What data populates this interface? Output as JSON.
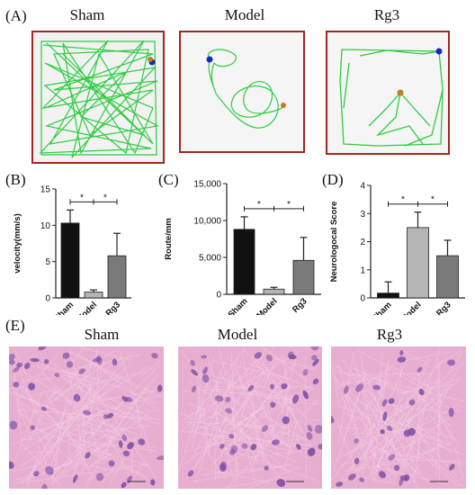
{
  "panel_letters": {
    "a": "(A)",
    "b": "(B)",
    "c": "(C)",
    "d": "(D)",
    "e": "(E)"
  },
  "track_titles": [
    "Sham",
    "Model",
    "Rg3"
  ],
  "histology_titles": [
    "Sham",
    "Model",
    "Rg3"
  ],
  "colors": {
    "frame": "#a0281e",
    "path": "#2ecc40",
    "pool_fill": "#f2f2f2",
    "start_dot": "#1428c8",
    "end_dot": "#c8781e",
    "bar_sham": "#111111",
    "bar_model": "#b4b4b4",
    "bar_rg3": "#7a7a7a",
    "tissue_bg": "#e8aed0",
    "nucleus": "#7a4fa6"
  },
  "chart_data": [
    {
      "id": "B",
      "type": "bar",
      "categories": [
        "Sham",
        "Model",
        "Rg3"
      ],
      "values": [
        10.3,
        0.8,
        5.8
      ],
      "errors": [
        1.8,
        0.3,
        3.1
      ],
      "ylabel": "velocity(mm/s)",
      "ylim": [
        0,
        15
      ],
      "yticks": [
        "0",
        "5",
        "10",
        "15"
      ],
      "ytick_values": [
        0,
        5,
        10,
        15
      ],
      "significance": [
        "*",
        "*"
      ]
    },
    {
      "id": "C",
      "type": "bar",
      "categories": [
        "Sham",
        "Model",
        "Rg3"
      ],
      "values": [
        8800,
        700,
        4600
      ],
      "errors": [
        1700,
        250,
        3100
      ],
      "ylabel": "Route/mm",
      "ylim": [
        0,
        15000
      ],
      "yticks": [
        "0",
        "5,000",
        "10,000",
        "15,000"
      ],
      "ytick_values": [
        0,
        5000,
        10000,
        15000
      ],
      "significance": [
        "*",
        "*"
      ]
    },
    {
      "id": "D",
      "type": "bar",
      "categories": [
        "Sham",
        "Model",
        "Rg3"
      ],
      "values": [
        0.17,
        2.5,
        1.5
      ],
      "errors": [
        0.4,
        0.55,
        0.55
      ],
      "ylabel": "Neurologocal Score",
      "ylim": [
        0,
        4
      ],
      "yticks": [
        "0",
        "1",
        "2",
        "3",
        "4"
      ],
      "ytick_values": [
        0,
        1,
        2,
        3,
        4
      ],
      "significance": [
        "*",
        "*"
      ]
    }
  ]
}
